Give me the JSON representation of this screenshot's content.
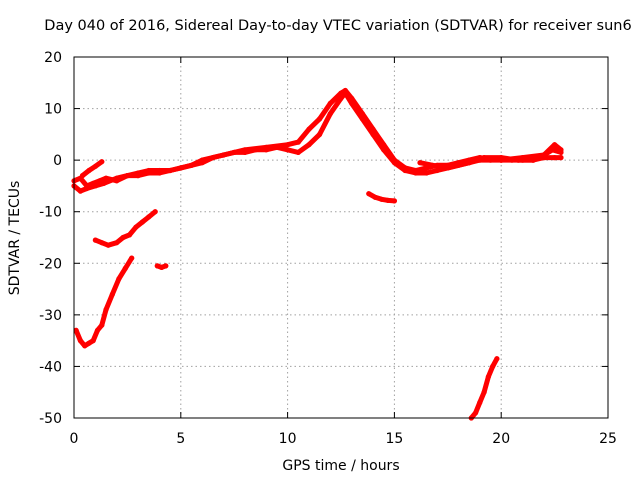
{
  "chart_data": {
    "type": "line",
    "title": "Day 040 of 2016, Sidereal Day-to-day VTEC variation (SDTVAR) for receiver sun6",
    "xlabel": "GPS time / hours",
    "ylabel": "SDTVAR / TECUs",
    "xlim": [
      0,
      25
    ],
    "ylim": [
      -50,
      20
    ],
    "xticks": [
      0,
      5,
      10,
      15,
      20,
      25
    ],
    "yticks": [
      20,
      10,
      0,
      -10,
      -20,
      -30,
      -40,
      -50
    ],
    "grid": true,
    "legend": "none",
    "series_color": "#ff0000",
    "series": [
      {
        "name": "main-track-a",
        "x": [
          0,
          0.3,
          0.6,
          0.9,
          1.2,
          1.5,
          2,
          2.5,
          3,
          3.5,
          4,
          4.5,
          5,
          5.5,
          6,
          6.5,
          7,
          7.5,
          8,
          8.5,
          9,
          9.5,
          10,
          10.5,
          11,
          11.5,
          12,
          12.5,
          12.7,
          13,
          13.5,
          14,
          14.5,
          15,
          15.5,
          16,
          16.5,
          17,
          17.5,
          18,
          18.5,
          19,
          19.5,
          20,
          20.5,
          21,
          21.5,
          22,
          22.5,
          22.8
        ],
        "y": [
          -4,
          -3.5,
          -5,
          -4.5,
          -4,
          -3.5,
          -4,
          -3,
          -3,
          -2.5,
          -2.5,
          -2,
          -1.5,
          -1,
          -0.5,
          0.5,
          1,
          1.5,
          1.5,
          2,
          2,
          2.5,
          2,
          1.5,
          3,
          5,
          9,
          12,
          13,
          11,
          8,
          5,
          2,
          -0.5,
          -2,
          -2.5,
          -2.5,
          -2,
          -1.5,
          -1,
          -0.5,
          0,
          0,
          0,
          0,
          0,
          0,
          0.5,
          0.5,
          0.5
        ]
      },
      {
        "name": "main-track-b",
        "x": [
          0,
          0.3,
          0.6,
          1,
          1.4,
          2,
          2.5,
          3,
          3.5,
          4,
          4.5,
          5,
          5.5,
          6,
          7,
          8,
          9,
          10,
          10.5,
          11,
          11.5,
          12,
          12.5,
          12.7,
          13,
          13.5,
          14,
          14.5,
          15,
          15.5,
          16,
          16.5,
          17,
          17.5,
          18,
          18.5,
          19,
          20,
          21,
          22,
          22.5,
          22.8
        ],
        "y": [
          -5,
          -6,
          -5.5,
          -5,
          -4.5,
          -3.5,
          -3,
          -2.5,
          -2,
          -2,
          -2,
          -1.5,
          -1,
          0,
          1,
          2,
          2.5,
          3,
          3.5,
          6,
          8,
          11,
          13,
          13.5,
          12,
          9,
          6,
          3,
          0,
          -1.5,
          -2,
          -1.5,
          -1,
          -1,
          -0.5,
          0,
          0.5,
          0,
          0.5,
          1,
          3,
          2
        ]
      },
      {
        "name": "lower-left-arc",
        "x": [
          0.1,
          0.3,
          0.5,
          0.7,
          0.9,
          1.1,
          1.3,
          1.5,
          1.8,
          2.1,
          2.4,
          2.7
        ],
        "y": [
          -33,
          -35,
          -36,
          -35.5,
          -35,
          -33,
          -32,
          -29,
          -26,
          -23,
          -21,
          -19
        ]
      },
      {
        "name": "left-rising-segment",
        "x": [
          1,
          1.3,
          1.6,
          2,
          2.3,
          2.6,
          2.9,
          3.2,
          3.5,
          3.8
        ],
        "y": [
          -15.5,
          -16,
          -16.5,
          -16,
          -15,
          -14.5,
          -13,
          -12,
          -11,
          -10
        ]
      },
      {
        "name": "small-blob-4h",
        "x": [
          3.9,
          4.1,
          4.3
        ],
        "y": [
          -20.5,
          -20.8,
          -20.5
        ]
      },
      {
        "name": "upper-left-hook",
        "x": [
          0.4,
          0.7,
          1.0,
          1.3
        ],
        "y": [
          -3,
          -2,
          -1.2,
          -0.3
        ]
      },
      {
        "name": "mid-right-fragment",
        "x": [
          13.8,
          14.1,
          14.4,
          14.7,
          15.0
        ],
        "y": [
          -6.5,
          -7.2,
          -7.6,
          -7.8,
          -7.9
        ]
      },
      {
        "name": "steep-rise-lower-right",
        "x": [
          18.6,
          18.8,
          19.0,
          19.2,
          19.4,
          19.6,
          19.8
        ],
        "y": [
          -50,
          -49,
          -47,
          -45,
          -42,
          -40,
          -38.5
        ]
      },
      {
        "name": "right-scatter",
        "x": [
          16.2,
          16.8,
          17.5,
          18.5,
          19.2,
          20,
          20.8,
          21.5,
          22,
          22.4,
          22.8
        ],
        "y": [
          -0.5,
          -1,
          -1.5,
          -0.5,
          0.5,
          0.5,
          0,
          0,
          1,
          2,
          1.5
        ]
      }
    ]
  }
}
